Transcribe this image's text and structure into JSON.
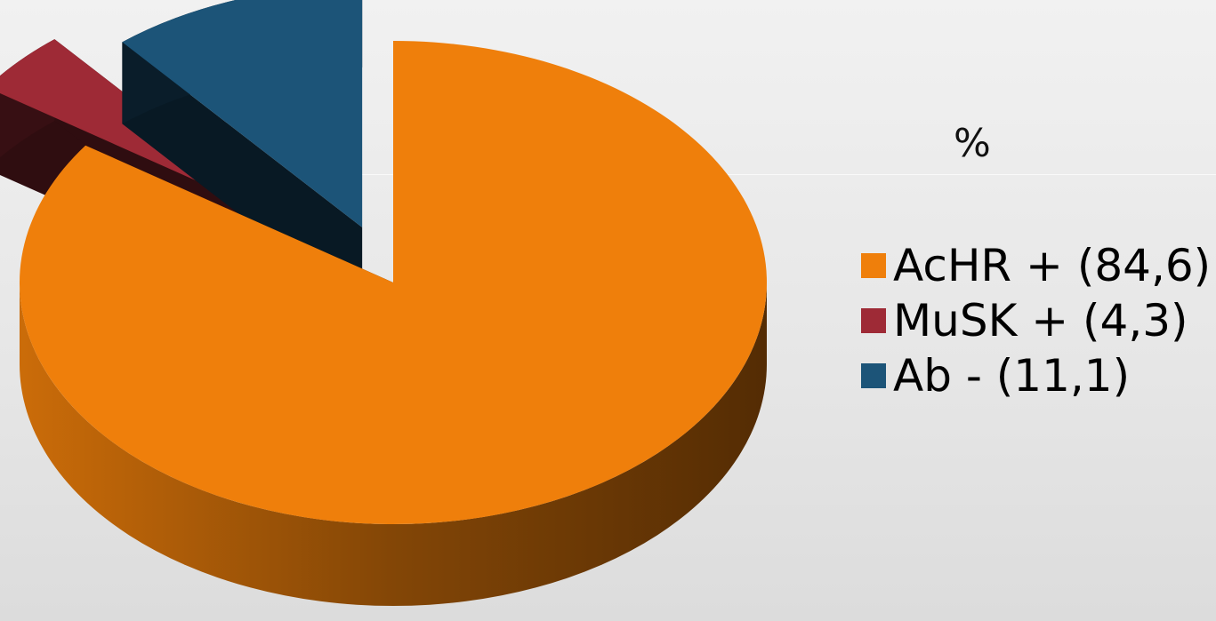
{
  "chart_data": {
    "type": "pie",
    "title": "%",
    "legend_position": "right",
    "slices": [
      {
        "label": "AcHR + (84,6)",
        "value": 84.6,
        "color": "#ef7f0b"
      },
      {
        "label": "MuSK + (4,3)",
        "value": 4.3,
        "color": "#9e2a36"
      },
      {
        "label": "Ab - (11,1)",
        "value": 11.1,
        "color": "#1c5478"
      }
    ],
    "exploded": true,
    "style": "3d"
  }
}
